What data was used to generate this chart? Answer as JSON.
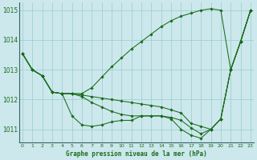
{
  "title": "Graphe pression niveau de la mer (hPa)",
  "bg_color": "#cce8ec",
  "grid_color": "#99cccc",
  "line_color": "#1a6b1a",
  "xlim": [
    -0.3,
    23.3
  ],
  "ylim": [
    1010.55,
    1015.25
  ],
  "yticks": [
    1011,
    1012,
    1013,
    1014,
    1015
  ],
  "xticks": [
    0,
    1,
    2,
    3,
    4,
    5,
    6,
    7,
    8,
    9,
    10,
    11,
    12,
    13,
    14,
    15,
    16,
    17,
    18,
    19,
    20,
    21,
    22,
    23
  ],
  "series": [
    [
      1013.55,
      1013.0,
      1012.8,
      1012.25,
      1012.2,
      1011.45,
      1011.15,
      1011.1,
      1011.15,
      1011.25,
      1011.3,
      1011.3,
      1011.45,
      1011.45,
      1011.45,
      1011.35,
      1011.0,
      1010.8,
      1010.7,
      1011.0,
      1011.35,
      1013.0,
      1013.95,
      1015.0
    ],
    [
      1013.55,
      1013.0,
      1012.8,
      1012.25,
      1012.2,
      1012.2,
      1012.15,
      1012.1,
      1012.05,
      1012.0,
      1011.95,
      1011.9,
      1011.85,
      1011.8,
      1011.75,
      1011.65,
      1011.55,
      1011.2,
      1011.1,
      1011.0,
      1011.35,
      1013.0,
      1013.95,
      1015.0
    ],
    [
      1013.55,
      1013.0,
      1012.8,
      1012.25,
      1012.2,
      1012.2,
      1012.1,
      1011.9,
      1011.75,
      1011.6,
      1011.5,
      1011.45,
      1011.45,
      1011.45,
      1011.45,
      1011.4,
      1011.3,
      1011.05,
      1010.85,
      1011.0,
      1011.35,
      1013.0,
      1013.95,
      1015.0
    ],
    [
      1013.55,
      1013.0,
      1012.8,
      1012.25,
      1012.2,
      1012.2,
      1012.2,
      1012.4,
      1012.75,
      1013.1,
      1013.4,
      1013.7,
      1013.95,
      1014.2,
      1014.45,
      1014.65,
      1014.8,
      1014.9,
      1015.0,
      1015.05,
      1015.0,
      1013.0,
      1013.95,
      1015.0
    ]
  ]
}
